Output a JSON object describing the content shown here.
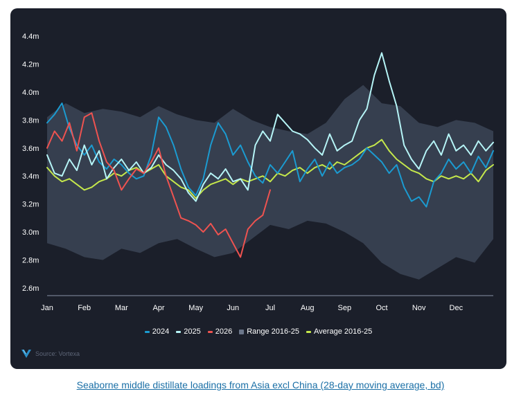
{
  "caption": "Seaborne middle distillate loadings from Asia excl China (28-day moving average, bd)",
  "source": "Source: Vortexa",
  "colors": {
    "background": "#1b1f2a",
    "range": "#3a4253",
    "s2024": "#1b9bd1",
    "s2025": "#b6f5f7",
    "s2026": "#ef5350",
    "average": "#c5e84b"
  },
  "chart_data": {
    "type": "line",
    "title": "",
    "xlabel": "",
    "ylabel": "",
    "x_ticks": [
      "Jan",
      "Feb",
      "Mar",
      "Apr",
      "May",
      "Jun",
      "Jul",
      "Aug",
      "Sep",
      "Oct",
      "Nov",
      "Dec"
    ],
    "y_ticks": [
      "4.4m",
      "4.2m",
      "4.0m",
      "3.8m",
      "3.6m",
      "3.4m",
      "3.2m",
      "3.0m",
      "2.8m",
      "2.6m"
    ],
    "ylim": [
      2.55,
      4.45
    ],
    "x_unit": "month (0 = Jan 1, 12 = Dec 31)",
    "xlim": [
      0,
      12
    ],
    "legend_position": "bottom",
    "legend": [
      "2024",
      "2025",
      "2026",
      "Range 2016-25",
      "Average 2016-25"
    ],
    "range_band": {
      "name": "Range 2016-25",
      "x": [
        0,
        0.5,
        1.0,
        1.5,
        2.0,
        2.5,
        3.0,
        3.5,
        4.0,
        4.5,
        5.0,
        5.5,
        6.0,
        6.5,
        7.0,
        7.5,
        8.0,
        8.5,
        9.0,
        9.5,
        10.0,
        10.5,
        11.0,
        11.5,
        12.0
      ],
      "high": [
        3.82,
        3.92,
        3.85,
        3.88,
        3.86,
        3.82,
        3.9,
        3.84,
        3.8,
        3.78,
        3.88,
        3.8,
        3.75,
        3.72,
        3.7,
        3.78,
        3.95,
        4.05,
        3.92,
        3.9,
        3.78,
        3.75,
        3.8,
        3.78,
        3.72
      ],
      "low": [
        2.92,
        2.88,
        2.82,
        2.8,
        2.88,
        2.85,
        2.92,
        2.95,
        2.88,
        2.82,
        2.85,
        2.95,
        3.05,
        3.02,
        3.08,
        3.06,
        3.0,
        2.92,
        2.78,
        2.7,
        2.66,
        2.74,
        2.82,
        2.78,
        2.95
      ]
    },
    "series": [
      {
        "name": "2024",
        "x": [
          0,
          0.2,
          0.4,
          0.6,
          0.8,
          1.0,
          1.2,
          1.4,
          1.6,
          1.8,
          2.0,
          2.2,
          2.4,
          2.6,
          2.8,
          3.0,
          3.2,
          3.4,
          3.6,
          3.8,
          4.0,
          4.2,
          4.4,
          4.6,
          4.8,
          5.0,
          5.2,
          5.4,
          5.6,
          5.8,
          6.0,
          6.2,
          6.4,
          6.6,
          6.8,
          7.0,
          7.2,
          7.4,
          7.6,
          7.8,
          8.0,
          8.2,
          8.4,
          8.6,
          8.8,
          9.0,
          9.2,
          9.4,
          9.6,
          9.8,
          10.0,
          10.2,
          10.4,
          10.6,
          10.8,
          11.0,
          11.2,
          11.4,
          11.6,
          11.8,
          12.0
        ],
        "values": [
          3.78,
          3.84,
          3.92,
          3.74,
          3.62,
          3.55,
          3.62,
          3.5,
          3.45,
          3.52,
          3.48,
          3.42,
          3.38,
          3.4,
          3.55,
          3.82,
          3.75,
          3.62,
          3.45,
          3.32,
          3.26,
          3.38,
          3.62,
          3.78,
          3.7,
          3.55,
          3.62,
          3.5,
          3.4,
          3.35,
          3.48,
          3.42,
          3.5,
          3.58,
          3.36,
          3.45,
          3.52,
          3.4,
          3.5,
          3.42,
          3.46,
          3.48,
          3.52,
          3.6,
          3.55,
          3.5,
          3.42,
          3.48,
          3.32,
          3.22,
          3.25,
          3.18,
          3.36,
          3.42,
          3.52,
          3.45,
          3.5,
          3.42,
          3.54,
          3.46,
          3.58
        ]
      },
      {
        "name": "2025",
        "x": [
          0,
          0.2,
          0.4,
          0.6,
          0.8,
          1.0,
          1.2,
          1.4,
          1.6,
          1.8,
          2.0,
          2.2,
          2.4,
          2.6,
          2.8,
          3.0,
          3.2,
          3.4,
          3.6,
          3.8,
          4.0,
          4.2,
          4.4,
          4.6,
          4.8,
          5.0,
          5.2,
          5.4,
          5.6,
          5.8,
          6.0,
          6.2,
          6.4,
          6.6,
          6.8,
          7.0,
          7.2,
          7.4,
          7.6,
          7.8,
          8.0,
          8.2,
          8.4,
          8.6,
          8.8,
          9.0,
          9.2,
          9.4,
          9.6,
          9.8,
          10.0,
          10.2,
          10.4,
          10.6,
          10.8,
          11.0,
          11.2,
          11.4,
          11.6,
          11.8,
          12.0
        ],
        "values": [
          3.55,
          3.42,
          3.4,
          3.52,
          3.44,
          3.62,
          3.48,
          3.58,
          3.38,
          3.46,
          3.52,
          3.44,
          3.5,
          3.42,
          3.46,
          3.55,
          3.48,
          3.44,
          3.38,
          3.28,
          3.22,
          3.34,
          3.42,
          3.38,
          3.45,
          3.36,
          3.38,
          3.3,
          3.62,
          3.72,
          3.65,
          3.84,
          3.78,
          3.72,
          3.7,
          3.66,
          3.6,
          3.55,
          3.7,
          3.58,
          3.62,
          3.65,
          3.8,
          3.88,
          4.12,
          4.28,
          4.08,
          3.9,
          3.62,
          3.52,
          3.45,
          3.58,
          3.65,
          3.55,
          3.7,
          3.58,
          3.62,
          3.55,
          3.65,
          3.58,
          3.64
        ]
      },
      {
        "name": "2026",
        "x": [
          0,
          0.2,
          0.4,
          0.6,
          0.8,
          1.0,
          1.2,
          1.4,
          1.6,
          1.8,
          2.0,
          2.2,
          2.4,
          2.6,
          2.8,
          3.0,
          3.2,
          3.4,
          3.6,
          3.8,
          4.0,
          4.2,
          4.4,
          4.6,
          4.8,
          5.0,
          5.2,
          5.4,
          5.6,
          5.8,
          6.0
        ],
        "values": [
          3.6,
          3.72,
          3.65,
          3.78,
          3.58,
          3.82,
          3.85,
          3.65,
          3.5,
          3.44,
          3.3,
          3.38,
          3.45,
          3.42,
          3.5,
          3.6,
          3.4,
          3.25,
          3.1,
          3.08,
          3.05,
          3.0,
          3.06,
          2.98,
          3.02,
          2.92,
          2.82,
          3.02,
          3.08,
          3.12,
          3.3
        ]
      },
      {
        "name": "Average 2016-25",
        "x": [
          0,
          0.2,
          0.4,
          0.6,
          0.8,
          1.0,
          1.2,
          1.4,
          1.6,
          1.8,
          2.0,
          2.2,
          2.4,
          2.6,
          2.8,
          3.0,
          3.2,
          3.4,
          3.6,
          3.8,
          4.0,
          4.2,
          4.4,
          4.6,
          4.8,
          5.0,
          5.2,
          5.4,
          5.6,
          5.8,
          6.0,
          6.2,
          6.4,
          6.6,
          6.8,
          7.0,
          7.2,
          7.4,
          7.6,
          7.8,
          8.0,
          8.2,
          8.4,
          8.6,
          8.8,
          9.0,
          9.2,
          9.4,
          9.6,
          9.8,
          10.0,
          10.2,
          10.4,
          10.6,
          10.8,
          11.0,
          11.2,
          11.4,
          11.6,
          11.8,
          12.0
        ],
        "values": [
          3.46,
          3.4,
          3.36,
          3.38,
          3.34,
          3.3,
          3.32,
          3.36,
          3.38,
          3.42,
          3.4,
          3.44,
          3.46,
          3.42,
          3.45,
          3.48,
          3.4,
          3.36,
          3.32,
          3.3,
          3.24,
          3.3,
          3.34,
          3.36,
          3.38,
          3.34,
          3.38,
          3.36,
          3.38,
          3.4,
          3.36,
          3.42,
          3.4,
          3.44,
          3.46,
          3.42,
          3.46,
          3.48,
          3.45,
          3.5,
          3.48,
          3.52,
          3.56,
          3.6,
          3.62,
          3.66,
          3.58,
          3.52,
          3.48,
          3.44,
          3.42,
          3.38,
          3.36,
          3.4,
          3.38,
          3.4,
          3.38,
          3.42,
          3.36,
          3.44,
          3.48
        ]
      }
    ]
  }
}
